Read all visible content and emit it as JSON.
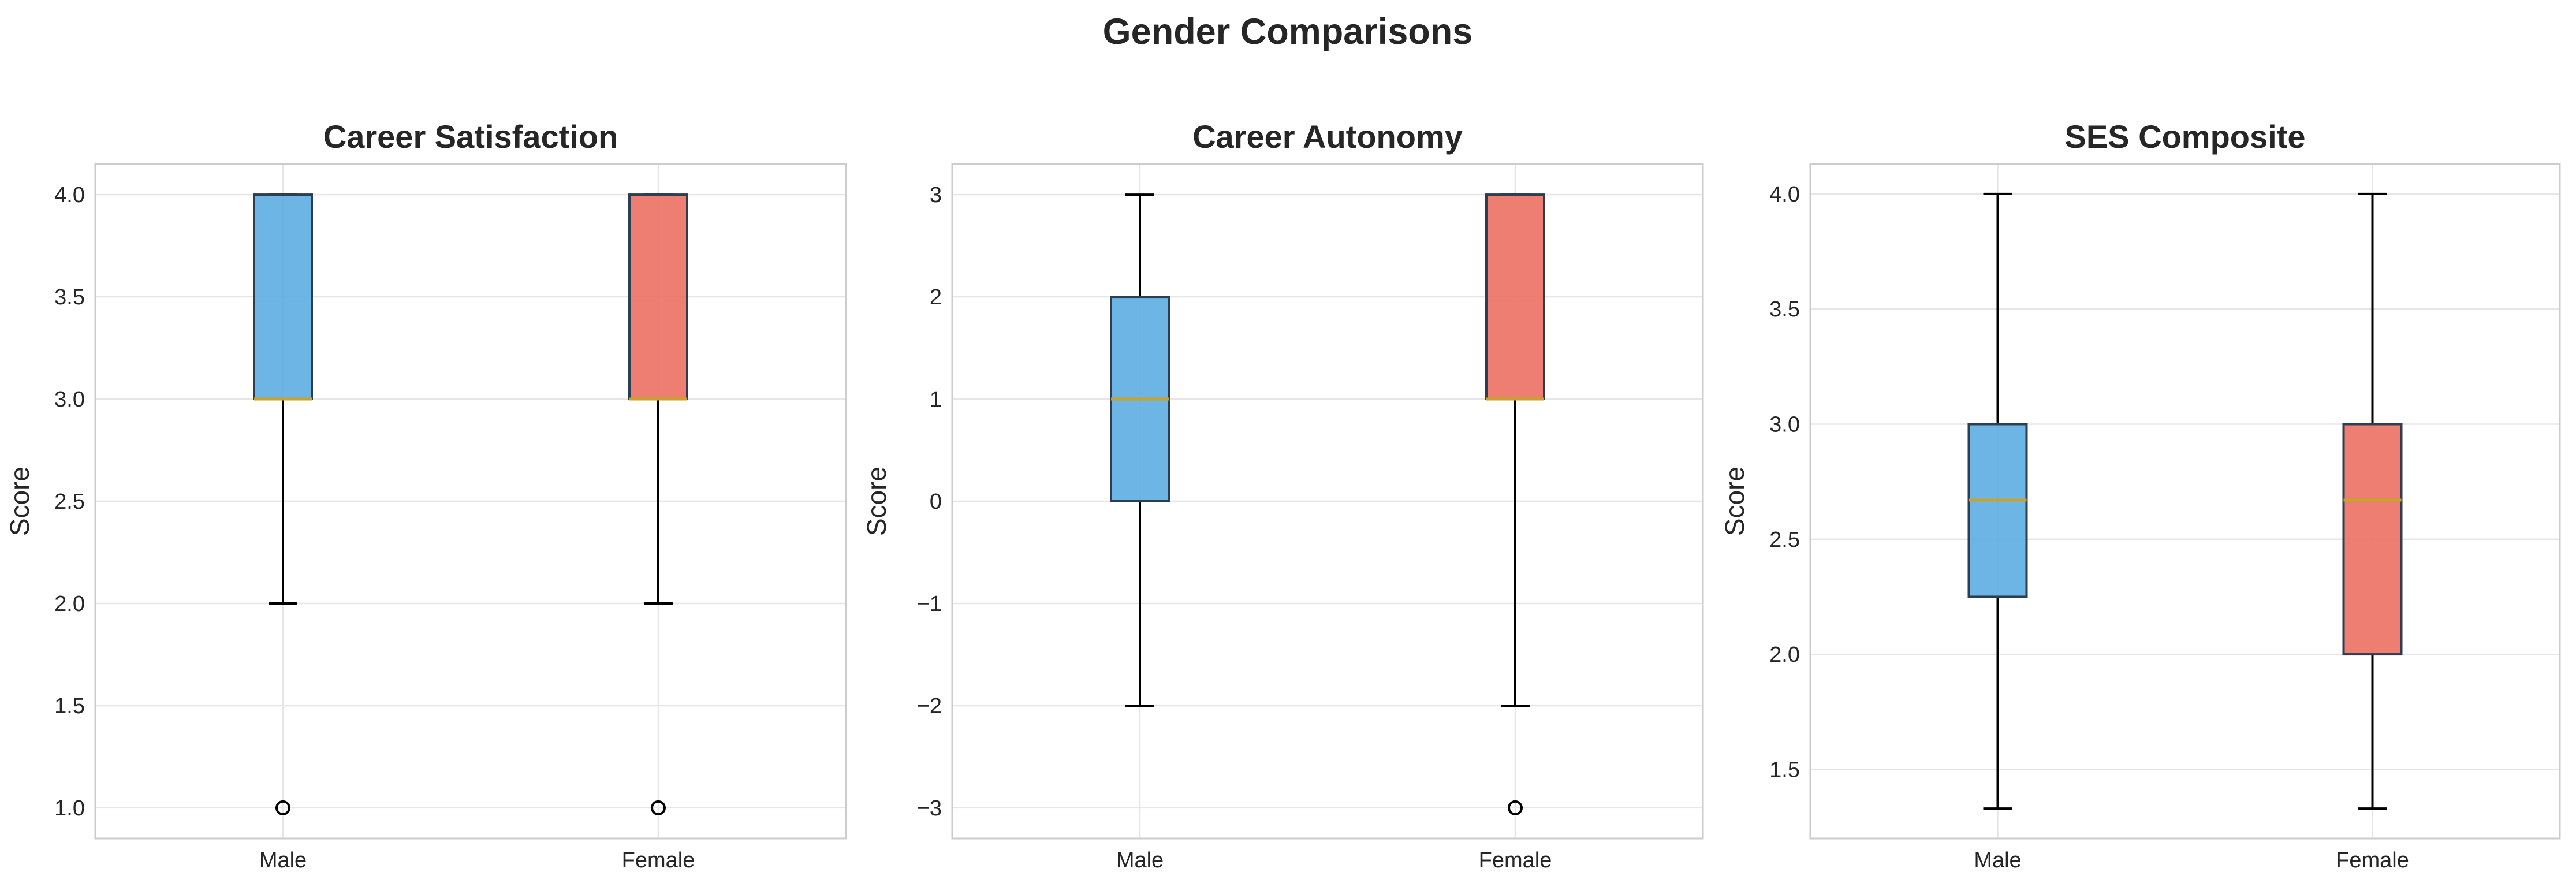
{
  "suptitle": "Gender Comparisons",
  "colors": {
    "male_fill": "#5DADE2",
    "female_fill": "#EC7063",
    "median": "#C9A227",
    "box_edge": "#2C3E50",
    "grid": "#E6E6E6",
    "axis_frame": "#CCCCCC",
    "text": "#262626"
  },
  "chart_data": [
    {
      "type": "box",
      "title": "Career Satisfaction",
      "ylabel": "Score",
      "xlabel": "",
      "categories": [
        "Male",
        "Female"
      ],
      "ylim": [
        0.85,
        4.15
      ],
      "yticks": [
        1.0,
        1.5,
        2.0,
        2.5,
        3.0,
        3.5,
        4.0
      ],
      "ytick_labels": [
        "1.0",
        "1.5",
        "2.0",
        "2.5",
        "3.0",
        "3.5",
        "4.0"
      ],
      "grid": true,
      "boxes": [
        {
          "name": "Male",
          "whisker_low": 2.0,
          "q1": 3.0,
          "median": 3.0,
          "q3": 4.0,
          "whisker_high": 4.0,
          "outliers": [
            1.0
          ]
        },
        {
          "name": "Female",
          "whisker_low": 2.0,
          "q1": 3.0,
          "median": 3.0,
          "q3": 4.0,
          "whisker_high": 4.0,
          "outliers": [
            1.0
          ]
        }
      ]
    },
    {
      "type": "box",
      "title": "Career Autonomy",
      "ylabel": "Score",
      "xlabel": "",
      "categories": [
        "Male",
        "Female"
      ],
      "ylim": [
        -3.3,
        3.3
      ],
      "yticks": [
        -3,
        -2,
        -1,
        0,
        1,
        2,
        3
      ],
      "ytick_labels": [
        "−3",
        "−2",
        "−1",
        "0",
        "1",
        "2",
        "3"
      ],
      "grid": true,
      "boxes": [
        {
          "name": "Male",
          "whisker_low": -2,
          "q1": 0,
          "median": 1,
          "q3": 2,
          "whisker_high": 3,
          "outliers": []
        },
        {
          "name": "Female",
          "whisker_low": -2,
          "q1": 1,
          "median": 1,
          "q3": 3,
          "whisker_high": 3,
          "outliers": [
            -3
          ]
        }
      ]
    },
    {
      "type": "box",
      "title": "SES Composite",
      "ylabel": "Score",
      "xlabel": "",
      "categories": [
        "Male",
        "Female"
      ],
      "ylim": [
        1.2,
        4.13
      ],
      "yticks": [
        1.5,
        2.0,
        2.5,
        3.0,
        3.5,
        4.0
      ],
      "ytick_labels": [
        "1.5",
        "2.0",
        "2.5",
        "3.0",
        "3.5",
        "4.0"
      ],
      "grid": true,
      "boxes": [
        {
          "name": "Male",
          "whisker_low": 1.33,
          "q1": 2.25,
          "median": 2.67,
          "q3": 3.0,
          "whisker_high": 4.0,
          "outliers": []
        },
        {
          "name": "Female",
          "whisker_low": 1.33,
          "q1": 2.0,
          "median": 2.67,
          "q3": 3.0,
          "whisker_high": 4.0,
          "outliers": []
        }
      ]
    }
  ]
}
